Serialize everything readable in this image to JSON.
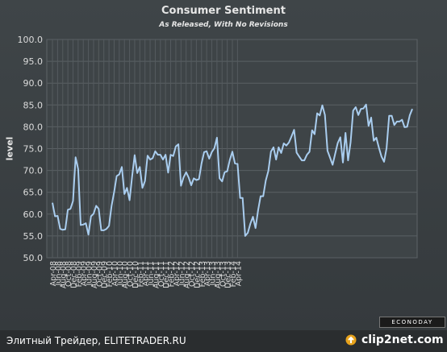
{
  "chart_data": {
    "type": "line",
    "title": "Consumer Sentiment",
    "subtitle": "As Released, With No Revisions",
    "ylabel": "level",
    "ylim": [
      50,
      100
    ],
    "yticks": [
      "100.0",
      "95.0",
      "90.0",
      "85.0",
      "80.0",
      "75.0",
      "70.0",
      "65.0",
      "60.0",
      "55.0",
      "50.0"
    ],
    "xticks": [
      "Apr-08",
      "Jun-08",
      "Aug-08",
      "Oct-08",
      "Dec-08",
      "Feb-09",
      "Apr-09",
      "Jun-09",
      "Aug-09",
      "Oct-09",
      "Dec-09",
      "Feb-10",
      "Apr-10",
      "Jun-10",
      "Aug-10",
      "Oct-10",
      "Dec-10",
      "Feb-11",
      "Apr-11",
      "Jun-11",
      "Aug-11",
      "Oct-11",
      "Dec-11",
      "Feb-12",
      "Apr-12",
      "Jun-12",
      "Aug-12",
      "Oct-12",
      "Dec-12",
      "Feb-13",
      "Apr-13",
      "Jun-13",
      "Aug-13",
      "Oct-13",
      "Dec-13",
      "Feb-14",
      "Apr-14"
    ],
    "grid": true,
    "line_color": "#a9cdef",
    "series": [
      {
        "values": [
          62.6,
          59.5,
          59.6,
          56.6,
          56.4,
          56.5,
          61.0,
          61.2,
          63.0,
          73.0,
          70.3,
          57.5,
          57.6,
          57.9,
          55.3,
          59.5,
          60.1,
          61.9,
          61.2,
          56.3,
          56.3,
          56.6,
          57.3,
          61.9,
          65.1,
          68.7,
          69.1,
          70.8,
          64.6,
          66.0,
          63.2,
          68.7,
          73.5,
          69.4,
          70.8,
          66.0,
          67.6,
          73.4,
          72.5,
          72.8,
          74.4,
          73.6,
          73.6,
          72.5,
          73.6,
          69.5,
          73.6,
          73.3,
          75.5,
          76.0,
          66.5,
          68.4,
          69.6,
          68.4,
          66.6,
          68.2,
          67.8,
          68.0,
          71.6,
          74.2,
          74.4,
          72.7,
          74.2,
          75.1,
          77.5,
          68.2,
          67.5,
          69.6,
          69.8,
          72.4,
          74.3,
          71.6,
          71.5,
          63.7,
          63.7,
          55.0,
          55.7,
          57.8,
          59.4,
          56.8,
          60.9,
          64.1,
          64.1,
          67.7,
          69.9,
          74.3,
          75.3,
          72.5,
          75.3,
          74.0,
          76.2,
          75.7,
          76.4,
          77.8,
          79.3,
          74.1,
          73.2,
          72.3,
          72.3,
          73.6,
          74.3,
          79.2,
          78.3,
          83.1,
          82.6,
          84.9,
          82.7,
          74.5,
          72.9,
          71.3,
          73.8,
          76.3,
          77.6,
          71.8,
          78.6,
          72.3,
          76.4,
          83.7,
          84.5,
          82.7,
          84.1,
          84.2,
          85.1,
          80.2,
          82.1,
          76.8,
          77.5,
          75.2,
          73.2,
          72.0,
          75.1,
          82.5,
          82.5,
          80.4,
          81.2,
          81.2,
          81.6,
          79.9,
          80.0,
          82.6,
          84.1
        ]
      }
    ]
  },
  "watermark": "ECONODAY",
  "footer": {
    "text": "Элитный Трейдер, ELITETRADER.RU",
    "brand": "clip2net.com"
  }
}
